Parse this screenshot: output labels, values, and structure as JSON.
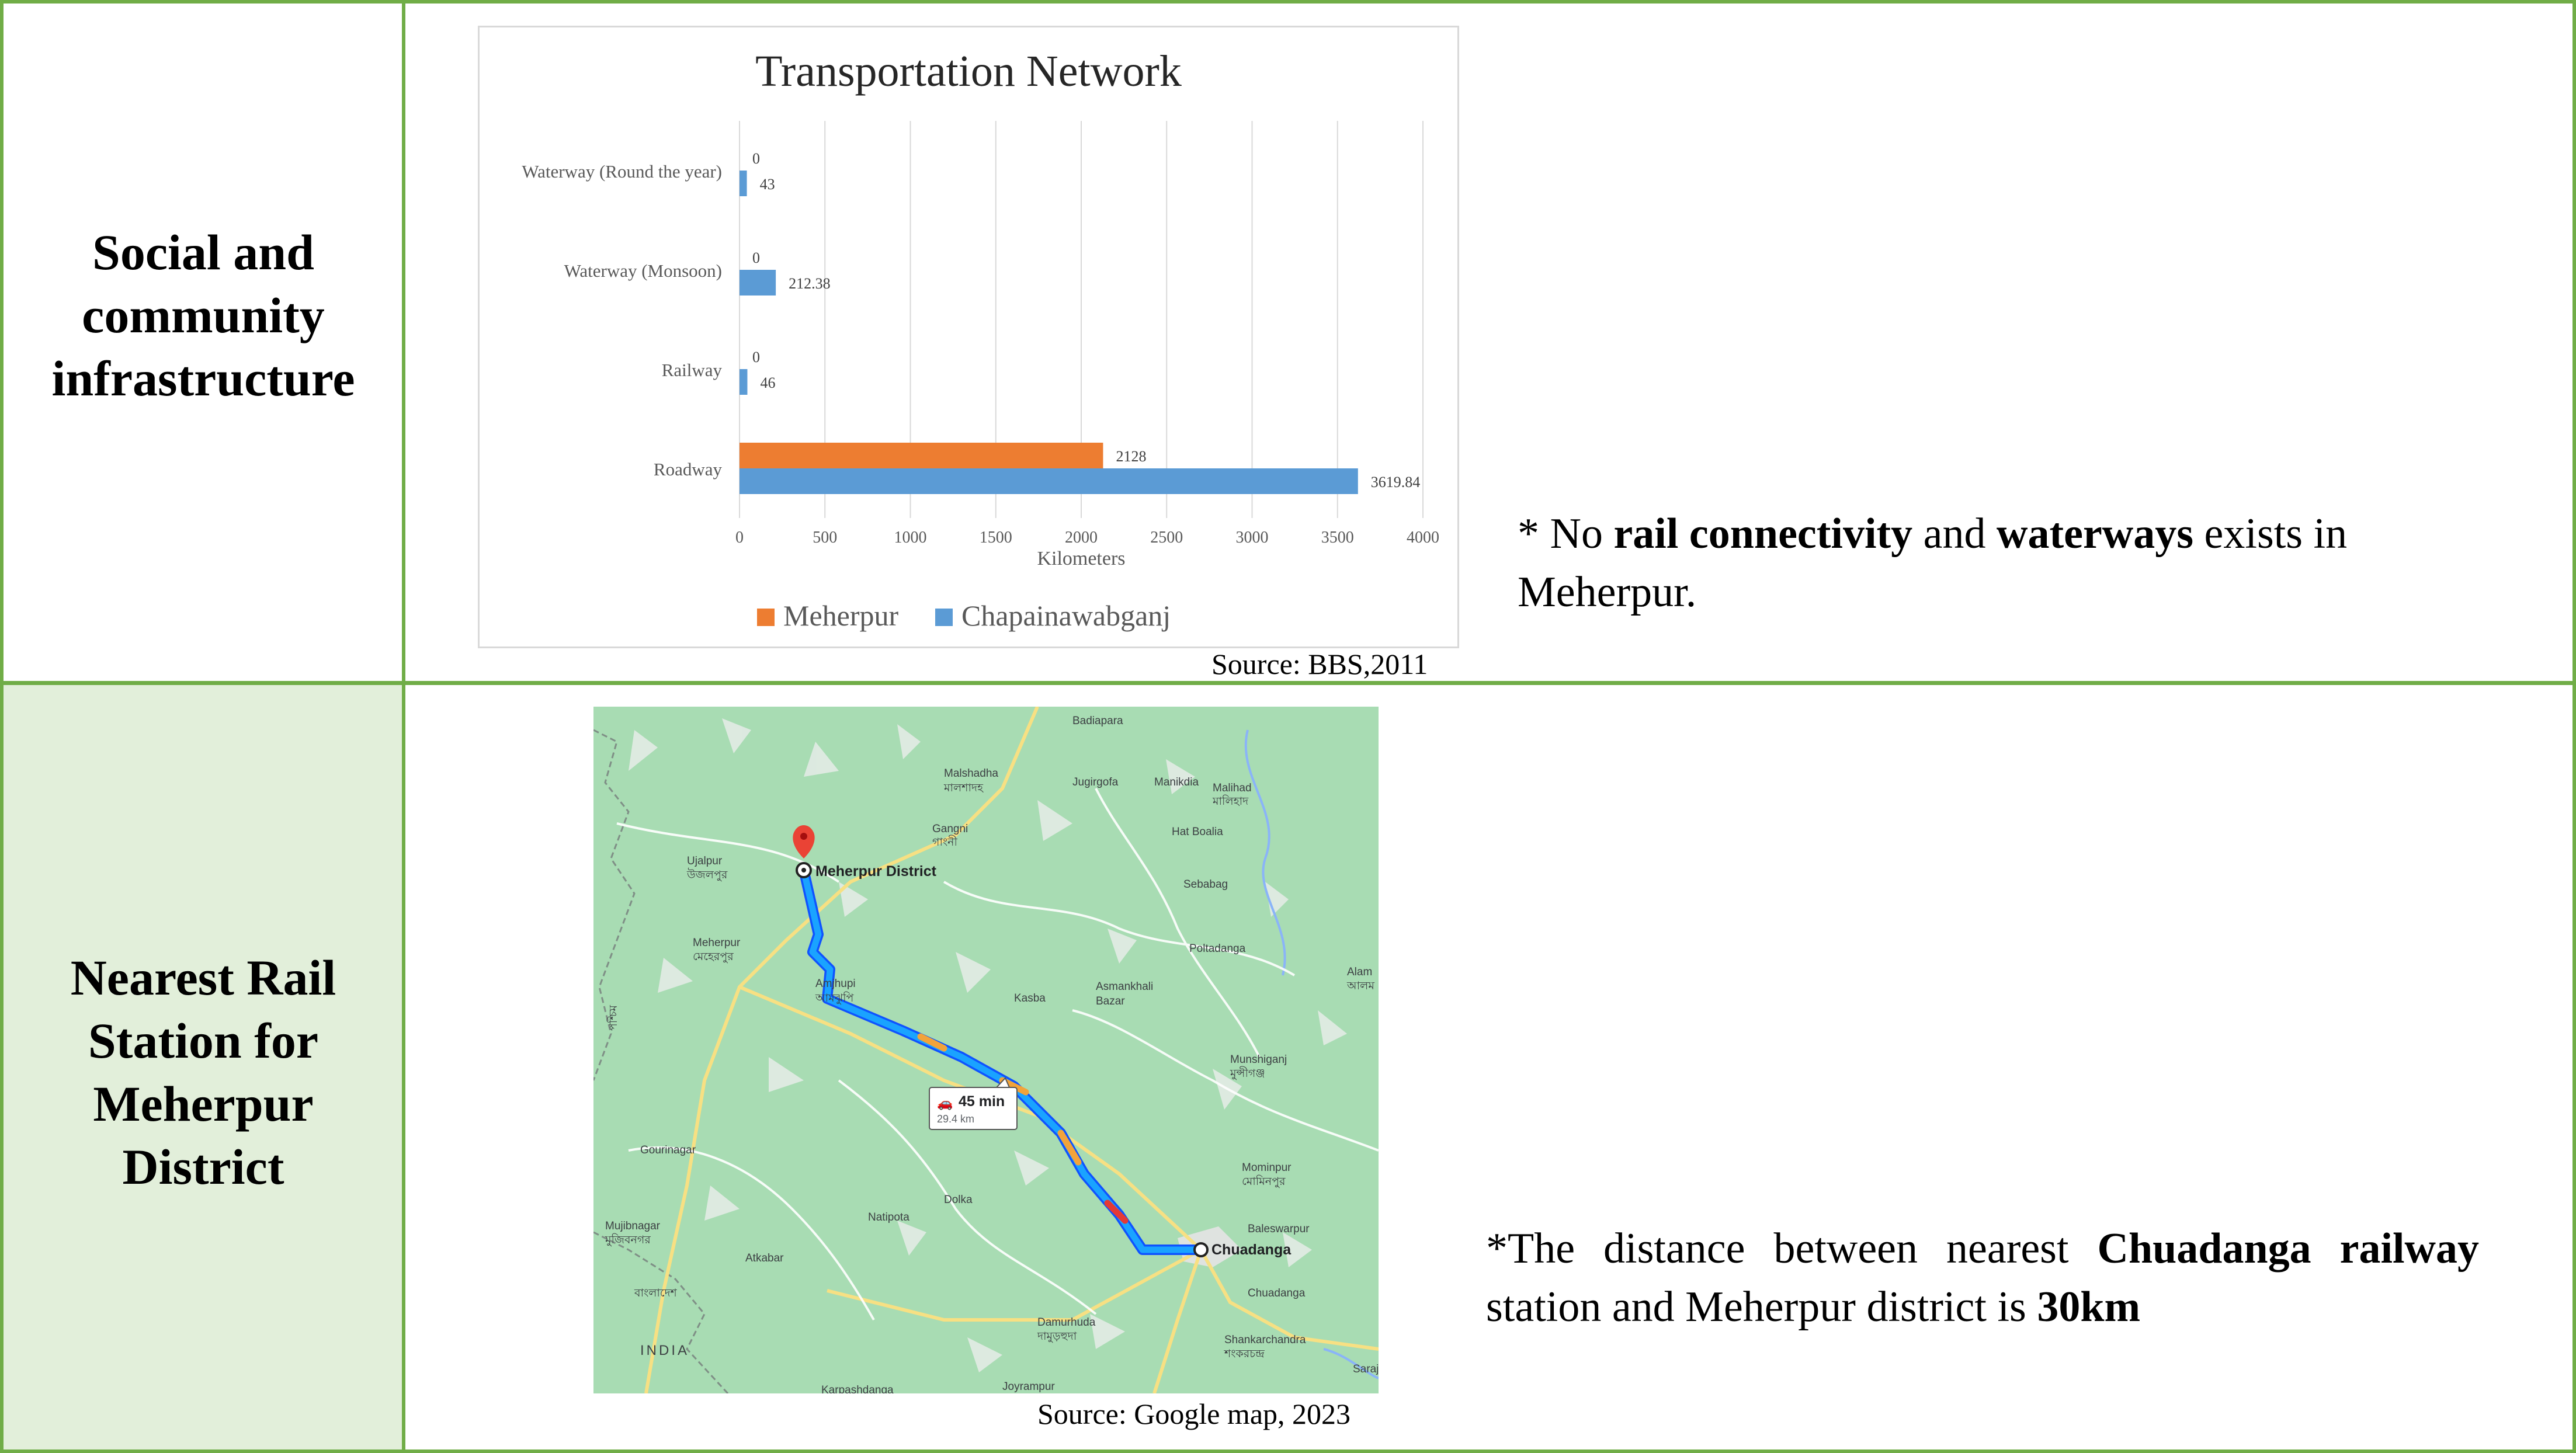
{
  "rows": [
    {
      "label_lines": [
        "Social and",
        "community",
        "infrastructure"
      ]
    },
    {
      "label_lines": [
        "Nearest Rail",
        "Station for",
        "Meherpur",
        "District"
      ]
    }
  ],
  "chart_data": {
    "type": "bar",
    "orientation": "horizontal",
    "title": "Transportation Network",
    "xlabel": "Kilometers",
    "ylabel": "",
    "xlim": [
      0,
      4000
    ],
    "xticks": [
      "0",
      "500",
      "1000",
      "1500",
      "2000",
      "2500",
      "3000",
      "3500",
      "4000"
    ],
    "categories": [
      "Roadway",
      "Railway",
      "Waterway (Monsoon)",
      "Waterway (Round the year)"
    ],
    "series": [
      {
        "name": "Meherpur",
        "color": "#ed7d31",
        "values": [
          2128,
          0,
          0,
          0
        ],
        "value_labels": [
          "2128",
          "0",
          "0",
          "0"
        ]
      },
      {
        "name": "Chapainawabganj",
        "color": "#5b9bd5",
        "values": [
          3619.84,
          46,
          212.38,
          43
        ],
        "value_labels": [
          "3619.84",
          "46",
          "212.38",
          "43"
        ]
      }
    ],
    "grid": true,
    "legend": "bottom"
  },
  "chart_source": "Source: BBS,2011",
  "note1": {
    "p1": "* No ",
    "b1": "rail connectivity",
    "p2": " and ",
    "b2": "waterways",
    "p3": " exists in",
    "line2": "Meherpur."
  },
  "map": {
    "places": [
      "Badiapara",
      "Malshadha",
      "মালশাদহ",
      "Jugirgofa",
      "Manikdia",
      "Malihad",
      "মালিহাদ",
      "Gangni",
      "গাংনী",
      "Hat Boalia",
      "Ujalpur",
      "উজলপুর",
      "Sebabag",
      "Meherpur",
      "মেহেরপুর",
      "Poltadanga",
      "Alam",
      "আলম",
      "Amjhupi",
      "আমঝুপি",
      "Kasba",
      "Asmankhali",
      "Bazar",
      "Munshiganj",
      "মুন্সীগঞ্জ",
      "Gourinagar",
      "Mominpur",
      "মোমিনপুর",
      "Dolka",
      "Mujibnagar",
      "মুজিবনগর",
      "Natipota",
      "Baleswarpur",
      "Atkabar",
      "Chuadanga",
      "বাংলাদেশ",
      "INDIA",
      "Damurhuda",
      "দামুড়হুদা",
      "Shankarchandra",
      "শংকরচন্দ্র",
      "Saraj",
      "Joyrampur",
      "Karpashdanga",
      "পশ্চিম"
    ],
    "origin": "Meherpur District",
    "destination": "Chuadanga",
    "route_time": "45 min",
    "route_distance": "29.4 km"
  },
  "map_source": "Source: Google map, 2023",
  "note2": {
    "p1": "*The distance between nearest ",
    "b1": "Chuadanga",
    "b2": "railway",
    "p2": " station and Meherpur district is ",
    "b3": "30km"
  },
  "colors": {
    "border": "#70ad47",
    "row2_label_bg": "#e2efda",
    "meherpur": "#ed7d31",
    "chapainawabganj": "#5b9bd5",
    "route": "#1a73e8"
  }
}
